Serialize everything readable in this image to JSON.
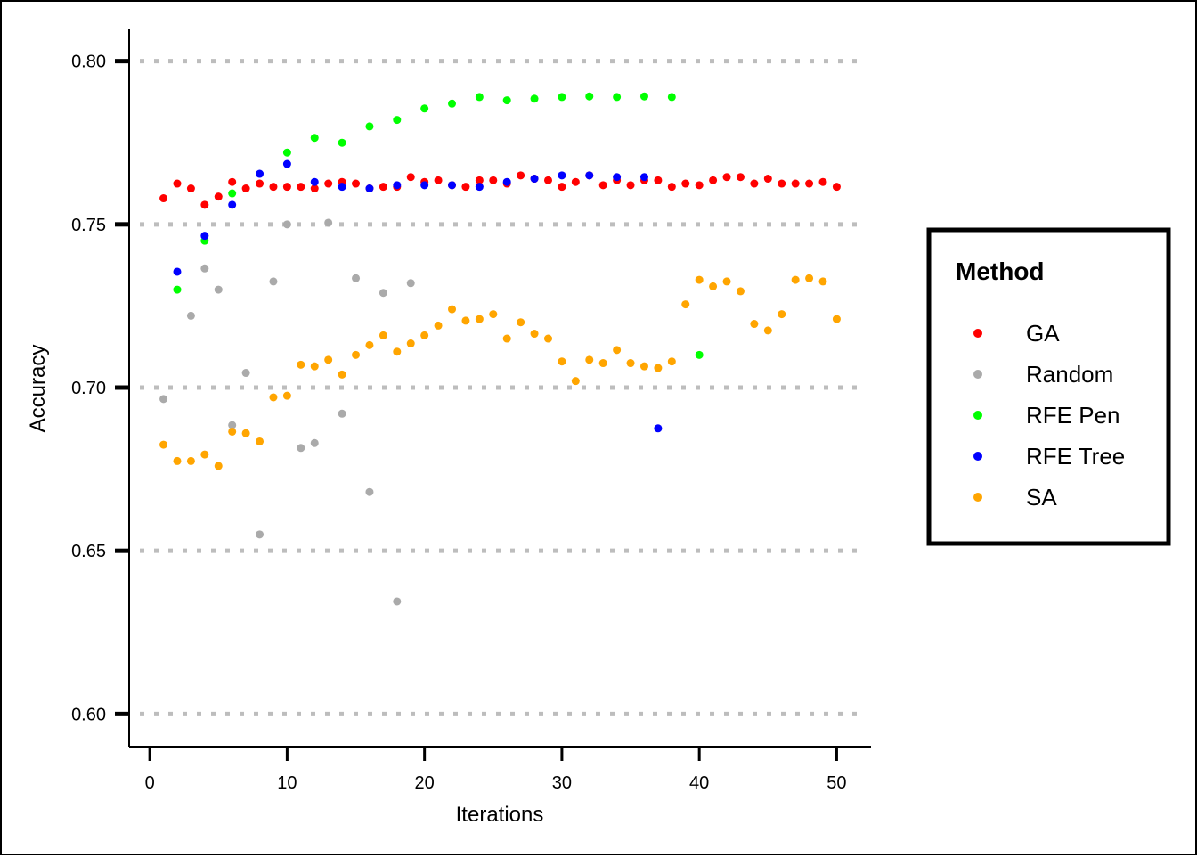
{
  "chart_data": {
    "type": "scatter",
    "xlabel": "Iterations",
    "ylabel": "Accuracy",
    "xlim": [
      -1.5,
      52.5
    ],
    "ylim": [
      0.59,
      0.81
    ],
    "x_ticks": [
      0,
      10,
      20,
      30,
      40,
      50
    ],
    "y_ticks": [
      0.6,
      0.65,
      0.7,
      0.75,
      0.8
    ],
    "x_tick_labels": [
      "0",
      "10",
      "20",
      "30",
      "40",
      "50"
    ],
    "y_tick_labels": [
      "0.60",
      "0.65",
      "0.70",
      "0.75",
      "0.80"
    ],
    "grid": "horizontal dotted at y ticks",
    "legend": {
      "title": "Method",
      "position": "right"
    },
    "series": [
      {
        "name": "GA",
        "color": "#ff0000",
        "points": [
          [
            1,
            0.758
          ],
          [
            2,
            0.7625
          ],
          [
            3,
            0.761
          ],
          [
            4,
            0.756
          ],
          [
            5,
            0.7585
          ],
          [
            6,
            0.763
          ],
          [
            7,
            0.761
          ],
          [
            8,
            0.7625
          ],
          [
            9,
            0.7615
          ],
          [
            10,
            0.7615
          ],
          [
            11,
            0.7615
          ],
          [
            12,
            0.761
          ],
          [
            13,
            0.7625
          ],
          [
            14,
            0.763
          ],
          [
            15,
            0.7625
          ],
          [
            16,
            0.761
          ],
          [
            17,
            0.7615
          ],
          [
            18,
            0.7615
          ],
          [
            19,
            0.7645
          ],
          [
            20,
            0.763
          ],
          [
            21,
            0.7635
          ],
          [
            22,
            0.762
          ],
          [
            23,
            0.7615
          ],
          [
            24,
            0.7635
          ],
          [
            25,
            0.7635
          ],
          [
            26,
            0.7625
          ],
          [
            27,
            0.765
          ],
          [
            28,
            0.764
          ],
          [
            29,
            0.7635
          ],
          [
            30,
            0.7615
          ],
          [
            31,
            0.763
          ],
          [
            32,
            0.765
          ],
          [
            33,
            0.762
          ],
          [
            34,
            0.7635
          ],
          [
            35,
            0.762
          ],
          [
            36,
            0.7635
          ],
          [
            37,
            0.7635
          ],
          [
            38,
            0.7615
          ],
          [
            39,
            0.7625
          ],
          [
            40,
            0.762
          ],
          [
            41,
            0.7635
          ],
          [
            42,
            0.7645
          ],
          [
            43,
            0.7645
          ],
          [
            44,
            0.7625
          ],
          [
            45,
            0.764
          ],
          [
            46,
            0.7625
          ],
          [
            47,
            0.7625
          ],
          [
            48,
            0.7625
          ],
          [
            49,
            0.763
          ],
          [
            50,
            0.7615
          ]
        ]
      },
      {
        "name": "Random",
        "color": "#aaaaaa",
        "points": [
          [
            1,
            0.6965
          ],
          [
            3,
            0.722
          ],
          [
            4,
            0.7365
          ],
          [
            5,
            0.73
          ],
          [
            6,
            0.6885
          ],
          [
            7,
            0.7045
          ],
          [
            8,
            0.655
          ],
          [
            9,
            0.7325
          ],
          [
            10,
            0.75
          ],
          [
            11,
            0.6815
          ],
          [
            12,
            0.683
          ],
          [
            13,
            0.7505
          ],
          [
            14,
            0.692
          ],
          [
            15,
            0.7335
          ],
          [
            16,
            0.668
          ],
          [
            17,
            0.729
          ],
          [
            18,
            0.6345
          ],
          [
            19,
            0.732
          ]
        ]
      },
      {
        "name": "RFE Pen",
        "color": "#00ff00",
        "points": [
          [
            2,
            0.73
          ],
          [
            4,
            0.745
          ],
          [
            6,
            0.7595
          ],
          [
            10,
            0.772
          ],
          [
            12,
            0.7765
          ],
          [
            14,
            0.775
          ],
          [
            16,
            0.78
          ],
          [
            18,
            0.782
          ],
          [
            20,
            0.7855
          ],
          [
            22,
            0.787
          ],
          [
            24,
            0.789
          ],
          [
            26,
            0.788
          ],
          [
            28,
            0.7885
          ],
          [
            30,
            0.789
          ],
          [
            32,
            0.7892
          ],
          [
            34,
            0.789
          ],
          [
            36,
            0.7892
          ],
          [
            38,
            0.789
          ],
          [
            40,
            0.71
          ]
        ]
      },
      {
        "name": "RFE Tree",
        "color": "#0000ff",
        "points": [
          [
            2,
            0.7355
          ],
          [
            4,
            0.7465
          ],
          [
            6,
            0.756
          ],
          [
            8,
            0.7655
          ],
          [
            10,
            0.7685
          ],
          [
            12,
            0.763
          ],
          [
            14,
            0.7615
          ],
          [
            16,
            0.761
          ],
          [
            18,
            0.762
          ],
          [
            20,
            0.762
          ],
          [
            22,
            0.762
          ],
          [
            24,
            0.7615
          ],
          [
            26,
            0.763
          ],
          [
            28,
            0.764
          ],
          [
            30,
            0.765
          ],
          [
            32,
            0.765
          ],
          [
            34,
            0.7645
          ],
          [
            36,
            0.7645
          ],
          [
            37,
            0.6875
          ]
        ]
      },
      {
        "name": "SA",
        "color": "#ffa500",
        "points": [
          [
            1,
            0.6825
          ],
          [
            2,
            0.6775
          ],
          [
            3,
            0.6775
          ],
          [
            4,
            0.6795
          ],
          [
            5,
            0.676
          ],
          [
            6,
            0.6865
          ],
          [
            7,
            0.686
          ],
          [
            8,
            0.6835
          ],
          [
            9,
            0.697
          ],
          [
            10,
            0.6975
          ],
          [
            11,
            0.707
          ],
          [
            12,
            0.7065
          ],
          [
            13,
            0.7085
          ],
          [
            14,
            0.704
          ],
          [
            15,
            0.71
          ],
          [
            16,
            0.713
          ],
          [
            17,
            0.716
          ],
          [
            18,
            0.711
          ],
          [
            19,
            0.7135
          ],
          [
            20,
            0.716
          ],
          [
            21,
            0.719
          ],
          [
            22,
            0.724
          ],
          [
            23,
            0.7205
          ],
          [
            24,
            0.721
          ],
          [
            25,
            0.7225
          ],
          [
            26,
            0.715
          ],
          [
            27,
            0.72
          ],
          [
            28,
            0.7165
          ],
          [
            29,
            0.715
          ],
          [
            30,
            0.708
          ],
          [
            31,
            0.702
          ],
          [
            32,
            0.7085
          ],
          [
            33,
            0.7075
          ],
          [
            34,
            0.7115
          ],
          [
            35,
            0.7075
          ],
          [
            36,
            0.7065
          ],
          [
            37,
            0.706
          ],
          [
            38,
            0.708
          ],
          [
            39,
            0.7255
          ],
          [
            40,
            0.733
          ],
          [
            41,
            0.731
          ],
          [
            42,
            0.7325
          ],
          [
            43,
            0.7295
          ],
          [
            44,
            0.7195
          ],
          [
            45,
            0.7175
          ],
          [
            46,
            0.7225
          ],
          [
            47,
            0.733
          ],
          [
            48,
            0.7335
          ],
          [
            49,
            0.7325
          ],
          [
            50,
            0.721
          ]
        ]
      }
    ]
  }
}
